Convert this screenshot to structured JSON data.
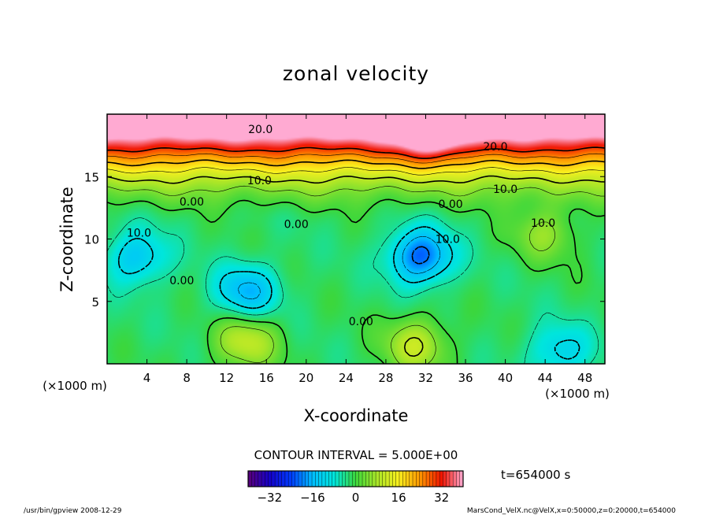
{
  "chart_data": {
    "type": "heatmap",
    "title": "zonal velocity",
    "xlabel": "X-coordinate",
    "ylabel": "Z-coordinate",
    "x_unit_label": "(×1000 m)",
    "y_unit_label": "(×1000 m)",
    "xlim": [
      0,
      50
    ],
    "ylim": [
      0,
      20
    ],
    "x_ticks": [
      "4",
      "8",
      "12",
      "16",
      "20",
      "24",
      "28",
      "32",
      "36",
      "40",
      "44",
      "48"
    ],
    "y_ticks": [
      "5",
      "10",
      "15"
    ],
    "contour_interval_text": "CONTOUR INTERVAL = 5.000E+00",
    "time_text": "t=654000 s",
    "colorbar_ticks": [
      "−32",
      "−16",
      "0",
      "16",
      "32"
    ],
    "colorbar_range": [
      -40,
      40
    ],
    "contour_labels": [
      {
        "text": "20.0",
        "x": 15.4,
        "y": 18.8
      },
      {
        "text": "20.0",
        "x": 39.0,
        "y": 17.4
      },
      {
        "text": "10.0",
        "x": 15.3,
        "y": 14.7
      },
      {
        "text": "10.0",
        "x": 40.0,
        "y": 14.0
      },
      {
        "text": "0.00",
        "x": 8.5,
        "y": 13.0
      },
      {
        "text": "0.00",
        "x": 34.5,
        "y": 12.8
      },
      {
        "text": "0.00",
        "x": 19.0,
        "y": 11.2
      },
      {
        "text": "10.0",
        "x": 43.8,
        "y": 11.3
      },
      {
        "text": "10.0",
        "x": 3.2,
        "y": 10.5
      },
      {
        "text": "10.0",
        "x": 34.2,
        "y": 10.0
      },
      {
        "text": "0.00",
        "x": 7.5,
        "y": 6.7
      },
      {
        "text": "0.00",
        "x": 25.5,
        "y": 3.4
      }
    ],
    "features": [
      {
        "type": "high",
        "x": 32.5,
        "y": 19.2,
        "value": 32
      },
      {
        "type": "high",
        "x": 14.0,
        "y": 1.8,
        "value": 18
      },
      {
        "type": "high",
        "x": 31.0,
        "y": 1.5,
        "value": 18
      },
      {
        "type": "high",
        "x": 44.0,
        "y": 10.5,
        "value": 14
      },
      {
        "type": "low",
        "x": 31.5,
        "y": 8.6,
        "value": -22
      },
      {
        "type": "low",
        "x": 3.0,
        "y": 8.5,
        "value": -14
      },
      {
        "type": "low",
        "x": 14.0,
        "y": 5.8,
        "value": -16
      },
      {
        "type": "low",
        "x": 45.5,
        "y": 1.0,
        "value": -12
      }
    ],
    "footer_left": "/usr/bin/gpview   2008-12-29",
    "footer_right": "MarsCond_VelX.nc@VelX,x=0:50000,z=0:20000,t=654000"
  }
}
